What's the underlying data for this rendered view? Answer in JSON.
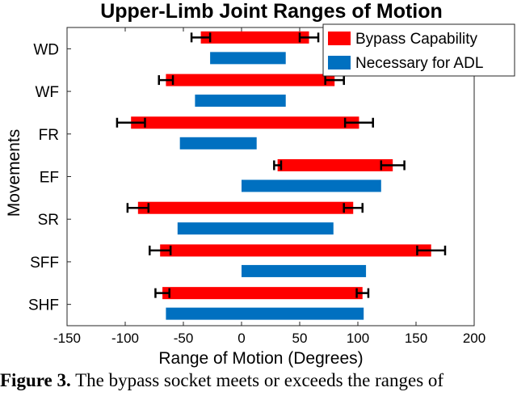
{
  "chart_data": {
    "type": "bar",
    "orientation": "horizontal",
    "title": "Upper-Limb Joint Ranges of Motion",
    "xlabel": "Range of Motion (Degrees)",
    "ylabel": "Movements",
    "xlim": [
      -150,
      200
    ],
    "xticks": [
      -150,
      -100,
      -50,
      0,
      50,
      100,
      150,
      200
    ],
    "categories": [
      "WD",
      "WF",
      "FR",
      "EF",
      "SR",
      "SFF",
      "SHF"
    ],
    "legend_position": "top-right",
    "grid": false,
    "series": [
      {
        "name": "Bypass Capability",
        "color": "#ff0000",
        "ranges": [
          [
            -35,
            58
          ],
          [
            -65,
            80
          ],
          [
            -95,
            101
          ],
          [
            31,
            130
          ],
          [
            -89,
            96
          ],
          [
            -70,
            163
          ],
          [
            -68,
            104
          ]
        ],
        "error_min": [
          8,
          6,
          12,
          3,
          9,
          9,
          6
        ],
        "error_max": [
          8,
          8,
          12,
          10,
          8,
          12,
          5
        ]
      },
      {
        "name": "Necessary for ADL",
        "color": "#0070c0",
        "ranges": [
          [
            -27,
            38
          ],
          [
            -40,
            38
          ],
          [
            -53,
            13
          ],
          [
            0,
            120
          ],
          [
            -55,
            79
          ],
          [
            0,
            107
          ],
          [
            -65,
            105
          ]
        ]
      }
    ]
  },
  "caption": {
    "label": "Figure 3.",
    "text": " The bypass socket meets or exceeds the ranges of"
  }
}
